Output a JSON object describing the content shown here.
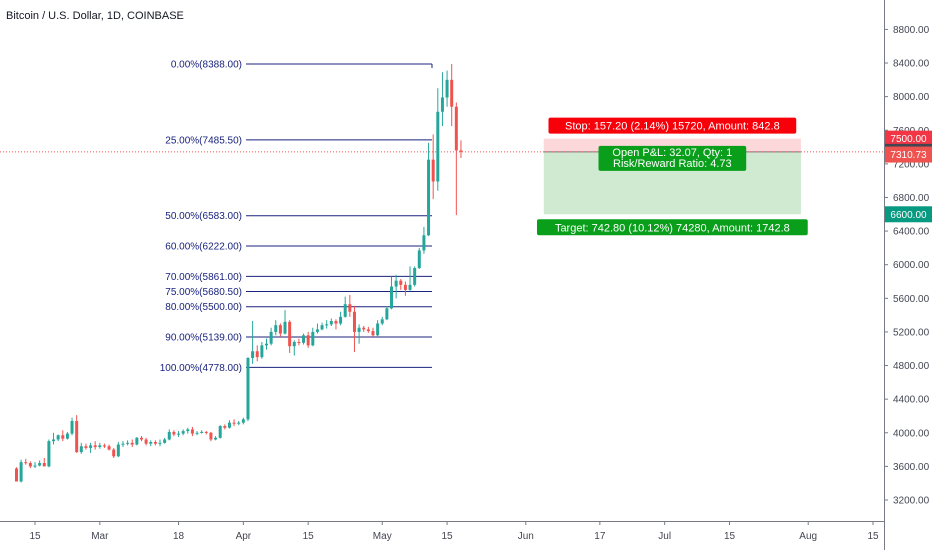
{
  "chart_data": {
    "type": "candlestick",
    "title": "Bitcoin / U.S. Dollar, 1D, COINBASE",
    "y_axis": {
      "position": "right",
      "ylim": [
        2950,
        9150
      ],
      "ticks": [
        3200,
        3600,
        4000,
        4400,
        4800,
        5200,
        5600,
        6000,
        6400,
        6800,
        7200,
        7600,
        8000,
        8400,
        8800
      ],
      "tick_labels": [
        "3200.00",
        "3600.00",
        "4000.00",
        "4400.00",
        "4800.00",
        "5200.00",
        "5600.00",
        "6000.00",
        "6400.00",
        "6800.00",
        "7200.00",
        "7600.00",
        "8000.00",
        "8400.00",
        "8800.00"
      ]
    },
    "x_axis": {
      "ticks": [
        {
          "label": "15",
          "date": "2019-02-15"
        },
        {
          "label": "Mar",
          "date": "2019-03-01"
        },
        {
          "label": "18",
          "date": "2019-03-18"
        },
        {
          "label": "Apr",
          "date": "2019-04-01"
        },
        {
          "label": "15",
          "date": "2019-04-15"
        },
        {
          "label": "May",
          "date": "2019-05-01"
        },
        {
          "label": "15",
          "date": "2019-05-15"
        },
        {
          "label": "Jun",
          "date": "2019-06-01"
        },
        {
          "label": "17",
          "date": "2019-06-17"
        },
        {
          "label": "Jul",
          "date": "2019-07-01"
        },
        {
          "label": "15",
          "date": "2019-07-15"
        },
        {
          "label": "Aug",
          "date": "2019-08-01"
        },
        {
          "label": "15",
          "date": "2019-08-15"
        }
      ]
    },
    "candles": [
      {
        "date": "2019-02-11",
        "o": 3575,
        "h": 3590,
        "l": 3420,
        "c": 3420
      },
      {
        "date": "2019-02-12",
        "o": 3420,
        "h": 3680,
        "l": 3410,
        "c": 3650
      },
      {
        "date": "2019-02-13",
        "o": 3650,
        "h": 3690,
        "l": 3620,
        "c": 3640
      },
      {
        "date": "2019-02-14",
        "o": 3640,
        "h": 3660,
        "l": 3580,
        "c": 3600
      },
      {
        "date": "2019-02-15",
        "o": 3600,
        "h": 3650,
        "l": 3580,
        "c": 3610
      },
      {
        "date": "2019-02-16",
        "o": 3610,
        "h": 3670,
        "l": 3600,
        "c": 3640
      },
      {
        "date": "2019-02-17",
        "o": 3640,
        "h": 3700,
        "l": 3610,
        "c": 3600
      },
      {
        "date": "2019-02-18",
        "o": 3600,
        "h": 3920,
        "l": 3590,
        "c": 3900
      },
      {
        "date": "2019-02-19",
        "o": 3900,
        "h": 4000,
        "l": 3860,
        "c": 3920
      },
      {
        "date": "2019-02-20",
        "o": 3920,
        "h": 3980,
        "l": 3900,
        "c": 3970
      },
      {
        "date": "2019-02-21",
        "o": 3970,
        "h": 4030,
        "l": 3900,
        "c": 3930
      },
      {
        "date": "2019-02-22",
        "o": 3930,
        "h": 4010,
        "l": 3920,
        "c": 3990
      },
      {
        "date": "2019-02-23",
        "o": 3990,
        "h": 4180,
        "l": 3970,
        "c": 4140
      },
      {
        "date": "2019-02-24",
        "o": 4140,
        "h": 4210,
        "l": 3760,
        "c": 3770
      },
      {
        "date": "2019-02-25",
        "o": 3770,
        "h": 3880,
        "l": 3750,
        "c": 3840
      },
      {
        "date": "2019-02-26",
        "o": 3840,
        "h": 3870,
        "l": 3800,
        "c": 3820
      },
      {
        "date": "2019-02-27",
        "o": 3820,
        "h": 3880,
        "l": 3760,
        "c": 3850
      },
      {
        "date": "2019-02-28",
        "o": 3850,
        "h": 3900,
        "l": 3800,
        "c": 3830
      },
      {
        "date": "2019-03-01",
        "o": 3830,
        "h": 3880,
        "l": 3810,
        "c": 3850
      },
      {
        "date": "2019-03-02",
        "o": 3850,
        "h": 3870,
        "l": 3820,
        "c": 3840
      },
      {
        "date": "2019-03-03",
        "o": 3840,
        "h": 3860,
        "l": 3790,
        "c": 3800
      },
      {
        "date": "2019-03-04",
        "o": 3800,
        "h": 3820,
        "l": 3700,
        "c": 3720
      },
      {
        "date": "2019-03-05",
        "o": 3720,
        "h": 3890,
        "l": 3710,
        "c": 3860
      },
      {
        "date": "2019-03-06",
        "o": 3860,
        "h": 3900,
        "l": 3830,
        "c": 3870
      },
      {
        "date": "2019-03-07",
        "o": 3870,
        "h": 3910,
        "l": 3850,
        "c": 3880
      },
      {
        "date": "2019-03-08",
        "o": 3880,
        "h": 3920,
        "l": 3830,
        "c": 3860
      },
      {
        "date": "2019-03-09",
        "o": 3860,
        "h": 3950,
        "l": 3850,
        "c": 3940
      },
      {
        "date": "2019-03-10",
        "o": 3940,
        "h": 3960,
        "l": 3900,
        "c": 3920
      },
      {
        "date": "2019-03-11",
        "o": 3920,
        "h": 3940,
        "l": 3850,
        "c": 3870
      },
      {
        "date": "2019-03-12",
        "o": 3870,
        "h": 3910,
        "l": 3840,
        "c": 3890
      },
      {
        "date": "2019-03-13",
        "o": 3890,
        "h": 3910,
        "l": 3850,
        "c": 3870
      },
      {
        "date": "2019-03-14",
        "o": 3870,
        "h": 3920,
        "l": 3840,
        "c": 3880
      },
      {
        "date": "2019-03-15",
        "o": 3880,
        "h": 3940,
        "l": 3870,
        "c": 3920
      },
      {
        "date": "2019-03-16",
        "o": 3920,
        "h": 4040,
        "l": 3910,
        "c": 4010
      },
      {
        "date": "2019-03-17",
        "o": 4010,
        "h": 4030,
        "l": 3960,
        "c": 3980
      },
      {
        "date": "2019-03-18",
        "o": 3980,
        "h": 4020,
        "l": 3950,
        "c": 3990
      },
      {
        "date": "2019-03-19",
        "o": 3990,
        "h": 4040,
        "l": 3970,
        "c": 4020
      },
      {
        "date": "2019-03-20",
        "o": 4020,
        "h": 4060,
        "l": 3990,
        "c": 4040
      },
      {
        "date": "2019-03-21",
        "o": 4040,
        "h": 4070,
        "l": 3960,
        "c": 3990
      },
      {
        "date": "2019-03-22",
        "o": 3990,
        "h": 4020,
        "l": 3970,
        "c": 4000
      },
      {
        "date": "2019-03-23",
        "o": 4000,
        "h": 4030,
        "l": 3990,
        "c": 4010
      },
      {
        "date": "2019-03-24",
        "o": 4010,
        "h": 4020,
        "l": 3980,
        "c": 4000
      },
      {
        "date": "2019-03-25",
        "o": 4000,
        "h": 4010,
        "l": 3900,
        "c": 3920
      },
      {
        "date": "2019-03-26",
        "o": 3920,
        "h": 3960,
        "l": 3910,
        "c": 3940
      },
      {
        "date": "2019-03-27",
        "o": 3940,
        "h": 4090,
        "l": 3930,
        "c": 4080
      },
      {
        "date": "2019-03-28",
        "o": 4080,
        "h": 4100,
        "l": 4040,
        "c": 4060
      },
      {
        "date": "2019-03-29",
        "o": 4060,
        "h": 4150,
        "l": 4050,
        "c": 4120
      },
      {
        "date": "2019-03-30",
        "o": 4120,
        "h": 4160,
        "l": 4080,
        "c": 4110
      },
      {
        "date": "2019-03-31",
        "o": 4110,
        "h": 4140,
        "l": 4090,
        "c": 4120
      },
      {
        "date": "2019-04-01",
        "o": 4120,
        "h": 4180,
        "l": 4100,
        "c": 4160
      },
      {
        "date": "2019-04-02",
        "o": 4160,
        "h": 4900,
        "l": 4140,
        "c": 4890
      },
      {
        "date": "2019-04-03",
        "o": 4890,
        "h": 5330,
        "l": 4820,
        "c": 4970
      },
      {
        "date": "2019-04-04",
        "o": 4970,
        "h": 5040,
        "l": 4850,
        "c": 4900
      },
      {
        "date": "2019-04-05",
        "o": 4900,
        "h": 5080,
        "l": 4880,
        "c": 5040
      },
      {
        "date": "2019-04-06",
        "o": 5040,
        "h": 5120,
        "l": 4990,
        "c": 5060
      },
      {
        "date": "2019-04-07",
        "o": 5060,
        "h": 5250,
        "l": 5040,
        "c": 5200
      },
      {
        "date": "2019-04-08",
        "o": 5200,
        "h": 5340,
        "l": 5160,
        "c": 5280
      },
      {
        "date": "2019-04-09",
        "o": 5280,
        "h": 5300,
        "l": 5140,
        "c": 5180
      },
      {
        "date": "2019-04-10",
        "o": 5180,
        "h": 5460,
        "l": 5170,
        "c": 5320
      },
      {
        "date": "2019-04-11",
        "o": 5320,
        "h": 5340,
        "l": 4950,
        "c": 5030
      },
      {
        "date": "2019-04-12",
        "o": 5030,
        "h": 5100,
        "l": 4920,
        "c": 5080
      },
      {
        "date": "2019-04-13",
        "o": 5080,
        "h": 5120,
        "l": 5040,
        "c": 5070
      },
      {
        "date": "2019-04-14",
        "o": 5070,
        "h": 5180,
        "l": 5050,
        "c": 5160
      },
      {
        "date": "2019-04-15",
        "o": 5160,
        "h": 5200,
        "l": 5010,
        "c": 5040
      },
      {
        "date": "2019-04-16",
        "o": 5040,
        "h": 5250,
        "l": 5030,
        "c": 5200
      },
      {
        "date": "2019-04-17",
        "o": 5200,
        "h": 5300,
        "l": 5180,
        "c": 5230
      },
      {
        "date": "2019-04-18",
        "o": 5230,
        "h": 5310,
        "l": 5220,
        "c": 5280
      },
      {
        "date": "2019-04-19",
        "o": 5280,
        "h": 5340,
        "l": 5240,
        "c": 5290
      },
      {
        "date": "2019-04-20",
        "o": 5290,
        "h": 5360,
        "l": 5270,
        "c": 5330
      },
      {
        "date": "2019-04-21",
        "o": 5330,
        "h": 5350,
        "l": 5230,
        "c": 5300
      },
      {
        "date": "2019-04-22",
        "o": 5300,
        "h": 5440,
        "l": 5280,
        "c": 5380
      },
      {
        "date": "2019-04-23",
        "o": 5380,
        "h": 5620,
        "l": 5370,
        "c": 5530
      },
      {
        "date": "2019-04-24",
        "o": 5530,
        "h": 5640,
        "l": 5380,
        "c": 5440
      },
      {
        "date": "2019-04-25",
        "o": 5440,
        "h": 5510,
        "l": 4960,
        "c": 5200
      },
      {
        "date": "2019-04-26",
        "o": 5200,
        "h": 5290,
        "l": 5060,
        "c": 5250
      },
      {
        "date": "2019-04-27",
        "o": 5250,
        "h": 5270,
        "l": 5200,
        "c": 5230
      },
      {
        "date": "2019-04-28",
        "o": 5230,
        "h": 5260,
        "l": 5190,
        "c": 5210
      },
      {
        "date": "2019-04-29",
        "o": 5210,
        "h": 5250,
        "l": 5140,
        "c": 5160
      },
      {
        "date": "2019-04-30",
        "o": 5160,
        "h": 5340,
        "l": 5150,
        "c": 5300
      },
      {
        "date": "2019-05-01",
        "o": 5300,
        "h": 5380,
        "l": 5280,
        "c": 5350
      },
      {
        "date": "2019-05-02",
        "o": 5350,
        "h": 5500,
        "l": 5340,
        "c": 5480
      },
      {
        "date": "2019-05-03",
        "o": 5480,
        "h": 5860,
        "l": 5470,
        "c": 5740
      },
      {
        "date": "2019-05-04",
        "o": 5740,
        "h": 5880,
        "l": 5600,
        "c": 5810
      },
      {
        "date": "2019-05-05",
        "o": 5810,
        "h": 5830,
        "l": 5700,
        "c": 5760
      },
      {
        "date": "2019-05-06",
        "o": 5760,
        "h": 5800,
        "l": 5630,
        "c": 5700
      },
      {
        "date": "2019-05-07",
        "o": 5700,
        "h": 5980,
        "l": 5690,
        "c": 5760
      },
      {
        "date": "2019-05-08",
        "o": 5760,
        "h": 5980,
        "l": 5740,
        "c": 5960
      },
      {
        "date": "2019-05-09",
        "o": 5960,
        "h": 6200,
        "l": 5950,
        "c": 6170
      },
      {
        "date": "2019-05-10",
        "o": 6170,
        "h": 6450,
        "l": 6130,
        "c": 6350
      },
      {
        "date": "2019-05-11",
        "o": 6350,
        "h": 7450,
        "l": 6340,
        "c": 7250
      },
      {
        "date": "2019-05-12",
        "o": 7250,
        "h": 7550,
        "l": 6780,
        "c": 6990
      },
      {
        "date": "2019-05-13",
        "o": 6990,
        "h": 8100,
        "l": 6880,
        "c": 7820
      },
      {
        "date": "2019-05-14",
        "o": 7820,
        "h": 8290,
        "l": 7650,
        "c": 7990
      },
      {
        "date": "2019-05-15",
        "o": 7990,
        "h": 8310,
        "l": 7880,
        "c": 8200
      },
      {
        "date": "2019-05-16",
        "o": 8200,
        "h": 8388,
        "l": 7650,
        "c": 7880
      },
      {
        "date": "2019-05-17",
        "o": 7880,
        "h": 7930,
        "l": 6590,
        "c": 7360
      },
      {
        "date": "2019-05-18",
        "o": 7360,
        "h": 7480,
        "l": 7270,
        "c": 7342.8
      }
    ],
    "fibonacci": {
      "levels": [
        {
          "label": "0.00%(8388.00)",
          "price": 8388.0
        },
        {
          "label": "25.00%(7485.50)",
          "price": 7485.5
        },
        {
          "label": "50.00%(6583.00)",
          "price": 6583.0
        },
        {
          "label": "60.00%(6222.00)",
          "price": 6222.0
        },
        {
          "label": "70.00%(5861.00)",
          "price": 5861.0
        },
        {
          "label": "75.00%(5680.50)",
          "price": 5680.5
        },
        {
          "label": "80.00%(5500.00)",
          "price": 5500.0
        },
        {
          "label": "90.00%(5139.00)",
          "price": 5139.0
        },
        {
          "label": "100.00%(4778.00)",
          "price": 4778.0
        }
      ],
      "start_date": "2019-04-02",
      "end_date": "2019-05-16"
    },
    "position": {
      "type": "long",
      "entry": 7342.8,
      "stop": 7500.0,
      "target": 6600.0,
      "start_date": "2019-06-01",
      "end_date": "2019-07-30",
      "stop_label": "Stop: 157.20 (2.14%) 15720, Amount: 842.8",
      "pnl_label": "Open P&L: 32.07, Qty: 1",
      "rr_label": "Risk/Reward Ratio: 4.73",
      "target_label": "Target: 742.80 (10.12%) 74280, Amount: 1742.8"
    },
    "price_tags": [
      {
        "value": 7500.0,
        "label": "7500.00",
        "color": "#f23645"
      },
      {
        "value": 7342.8,
        "label": "7342.80",
        "color": "#434651"
      },
      {
        "value": 7310.73,
        "label": "7310.73",
        "color": "#ef5350"
      },
      {
        "value": 6600.0,
        "label": "6600.00",
        "color": "#089981"
      }
    ],
    "colors": {
      "up": "#26a69a",
      "down": "#ef5350",
      "fib": "#1a237e",
      "stop_zone": "#fccbcd",
      "target_zone": "#c8e6c9",
      "stop_box": "#f7000a",
      "target_box": "#0a9f1b",
      "axis_line": "#787b86"
    },
    "grid": false
  }
}
